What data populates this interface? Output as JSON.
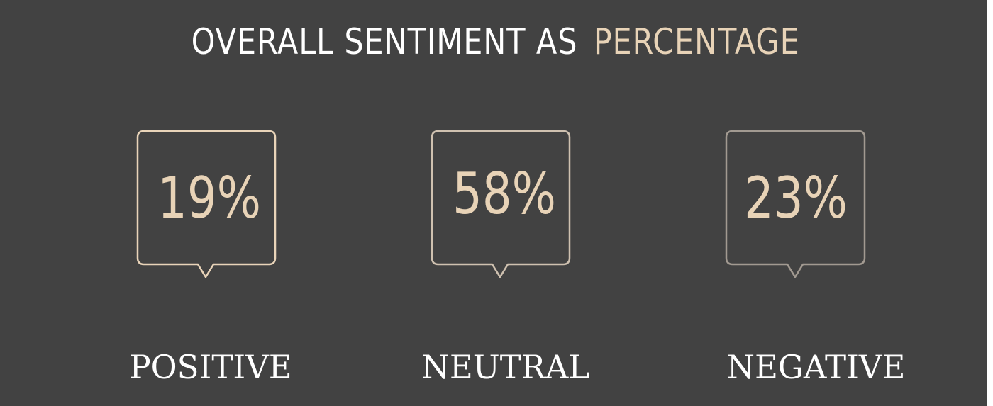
{
  "title": {
    "part1": "OVERALL SENTIMENT AS",
    "part2": "PERCENTAGE"
  },
  "items": [
    {
      "value": "19%",
      "label": "POSITIVE"
    },
    {
      "value": "58%",
      "label": "NEUTRAL"
    },
    {
      "value": "23%",
      "label": "NEGATIVE"
    }
  ],
  "colors": {
    "background": "#424242",
    "accent": "#e8d3b7",
    "text": "#ffffff"
  },
  "icons": [
    "speech-bubble-icon"
  ]
}
